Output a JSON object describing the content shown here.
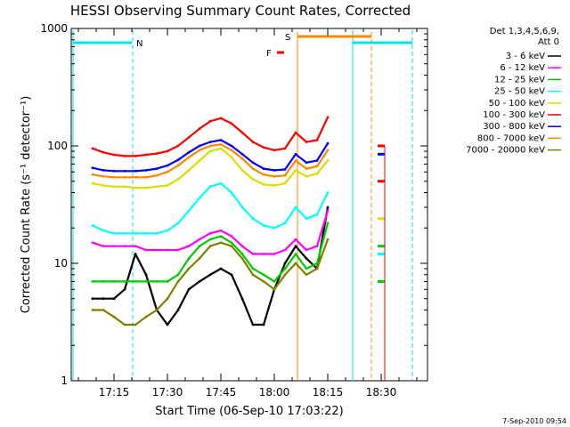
{
  "chart_data": {
    "type": "line",
    "title": "HESSI Observing Summary Count Rates, Corrected",
    "xlabel": "Start Time (06-Sep-10 17:03:22)",
    "ylabel": "Corrected Count Rate (s⁻¹ detector⁻¹)",
    "yscale": "log",
    "ylim": [
      1,
      1000
    ],
    "xlim": [
      "17:03",
      "18:43"
    ],
    "x_ticks": [
      "17:15",
      "17:30",
      "17:45",
      "18:00",
      "18:15",
      "18:30"
    ],
    "y_ticks": [
      "1",
      "10",
      "100",
      "1000"
    ],
    "timestamp": "7-Sep-2010 09:54",
    "legend_header": [
      "Det 1,3,4,5,6,9,",
      "Att 0"
    ],
    "flags": {
      "N": "N",
      "S": "S",
      "F": "F"
    },
    "series": [
      {
        "name": "3 - 6 keV",
        "color": "#000000",
        "points": [
          [
            "17:09",
            5
          ],
          [
            "17:12",
            5
          ],
          [
            "17:15",
            5
          ],
          [
            "17:18",
            6
          ],
          [
            "17:21",
            12
          ],
          [
            "17:24",
            8
          ],
          [
            "17:27",
            4
          ],
          [
            "17:30",
            3
          ],
          [
            "17:33",
            4
          ],
          [
            "17:36",
            6
          ],
          [
            "17:39",
            7
          ],
          [
            "17:42",
            8
          ],
          [
            "17:45",
            9
          ],
          [
            "17:48",
            8
          ],
          [
            "17:51",
            5
          ],
          [
            "17:54",
            3
          ],
          [
            "17:57",
            3
          ],
          [
            "18:00",
            6
          ],
          [
            "18:03",
            10
          ],
          [
            "18:06",
            14
          ],
          [
            "18:09",
            11
          ],
          [
            "18:12",
            9
          ],
          [
            "18:15",
            30
          ]
        ]
      },
      {
        "name": "6 - 12 keV",
        "color": "#ff00ff",
        "points": [
          [
            "17:09",
            15
          ],
          [
            "17:12",
            14
          ],
          [
            "17:15",
            14
          ],
          [
            "17:18",
            14
          ],
          [
            "17:21",
            14
          ],
          [
            "17:24",
            13
          ],
          [
            "17:27",
            13
          ],
          [
            "17:30",
            13
          ],
          [
            "17:33",
            13
          ],
          [
            "17:36",
            14
          ],
          [
            "17:39",
            16
          ],
          [
            "17:42",
            18
          ],
          [
            "17:45",
            19
          ],
          [
            "17:48",
            17
          ],
          [
            "17:51",
            14
          ],
          [
            "17:54",
            12
          ],
          [
            "17:57",
            12
          ],
          [
            "18:00",
            12
          ],
          [
            "18:03",
            13
          ],
          [
            "18:06",
            16
          ],
          [
            "18:09",
            13
          ],
          [
            "18:12",
            14
          ],
          [
            "18:15",
            28
          ]
        ]
      },
      {
        "name": "12 - 25 keV",
        "color": "#00cc00",
        "points": [
          [
            "17:09",
            7
          ],
          [
            "17:12",
            7
          ],
          [
            "17:15",
            7
          ],
          [
            "17:18",
            7
          ],
          [
            "17:21",
            7
          ],
          [
            "17:24",
            7
          ],
          [
            "17:27",
            7
          ],
          [
            "17:30",
            7
          ],
          [
            "17:33",
            8
          ],
          [
            "17:36",
            11
          ],
          [
            "17:39",
            14
          ],
          [
            "17:42",
            16
          ],
          [
            "17:45",
            17
          ],
          [
            "17:48",
            15
          ],
          [
            "17:51",
            12
          ],
          [
            "17:54",
            9
          ],
          [
            "17:57",
            8
          ],
          [
            "18:00",
            7
          ],
          [
            "18:03",
            9
          ],
          [
            "18:06",
            12
          ],
          [
            "18:09",
            9
          ],
          [
            "18:12",
            10
          ],
          [
            "18:15",
            22
          ]
        ]
      },
      {
        "name": "25 - 50 keV",
        "color": "#00ffff",
        "points": [
          [
            "17:09",
            21
          ],
          [
            "17:12",
            19
          ],
          [
            "17:15",
            18
          ],
          [
            "17:18",
            18
          ],
          [
            "17:21",
            18
          ],
          [
            "17:24",
            18
          ],
          [
            "17:27",
            18
          ],
          [
            "17:30",
            19
          ],
          [
            "17:33",
            22
          ],
          [
            "17:36",
            28
          ],
          [
            "17:39",
            36
          ],
          [
            "17:42",
            45
          ],
          [
            "17:45",
            48
          ],
          [
            "17:48",
            40
          ],
          [
            "17:51",
            30
          ],
          [
            "17:54",
            24
          ],
          [
            "17:57",
            21
          ],
          [
            "18:00",
            20
          ],
          [
            "18:03",
            22
          ],
          [
            "18:06",
            30
          ],
          [
            "18:09",
            24
          ],
          [
            "18:12",
            26
          ],
          [
            "18:15",
            40
          ]
        ]
      },
      {
        "name": "50 - 100 keV",
        "color": "#dddd00",
        "points": [
          [
            "17:09",
            48
          ],
          [
            "17:12",
            46
          ],
          [
            "17:15",
            45
          ],
          [
            "17:18",
            45
          ],
          [
            "17:21",
            44
          ],
          [
            "17:24",
            44
          ],
          [
            "17:27",
            45
          ],
          [
            "17:30",
            46
          ],
          [
            "17:33",
            52
          ],
          [
            "17:36",
            62
          ],
          [
            "17:39",
            75
          ],
          [
            "17:42",
            90
          ],
          [
            "17:45",
            95
          ],
          [
            "17:48",
            80
          ],
          [
            "17:51",
            62
          ],
          [
            "17:54",
            52
          ],
          [
            "17:57",
            47
          ],
          [
            "18:00",
            46
          ],
          [
            "18:03",
            48
          ],
          [
            "18:06",
            62
          ],
          [
            "18:09",
            55
          ],
          [
            "18:12",
            58
          ],
          [
            "18:15",
            75
          ]
        ]
      },
      {
        "name": "100 - 300 keV",
        "color": "#ff0000",
        "points": [
          [
            "17:09",
            95
          ],
          [
            "17:12",
            88
          ],
          [
            "17:15",
            84
          ],
          [
            "17:18",
            82
          ],
          [
            "17:21",
            82
          ],
          [
            "17:24",
            84
          ],
          [
            "17:27",
            86
          ],
          [
            "17:30",
            90
          ],
          [
            "17:33",
            100
          ],
          [
            "17:36",
            118
          ],
          [
            "17:39",
            140
          ],
          [
            "17:42",
            162
          ],
          [
            "17:45",
            172
          ],
          [
            "17:48",
            155
          ],
          [
            "17:51",
            130
          ],
          [
            "17:54",
            108
          ],
          [
            "17:57",
            97
          ],
          [
            "18:00",
            92
          ],
          [
            "18:03",
            95
          ],
          [
            "18:06",
            130
          ],
          [
            "18:09",
            108
          ],
          [
            "18:12",
            112
          ],
          [
            "18:15",
            175
          ]
        ]
      },
      {
        "name": "300 - 800 keV",
        "color": "#0000ff",
        "points": [
          [
            "17:09",
            65
          ],
          [
            "17:12",
            62
          ],
          [
            "17:15",
            61
          ],
          [
            "17:18",
            61
          ],
          [
            "17:21",
            61
          ],
          [
            "17:24",
            62
          ],
          [
            "17:27",
            64
          ],
          [
            "17:30",
            68
          ],
          [
            "17:33",
            76
          ],
          [
            "17:36",
            88
          ],
          [
            "17:39",
            100
          ],
          [
            "17:42",
            108
          ],
          [
            "17:45",
            112
          ],
          [
            "17:48",
            100
          ],
          [
            "17:51",
            85
          ],
          [
            "17:54",
            72
          ],
          [
            "17:57",
            64
          ],
          [
            "18:00",
            62
          ],
          [
            "18:03",
            63
          ],
          [
            "18:06",
            85
          ],
          [
            "18:09",
            72
          ],
          [
            "18:12",
            75
          ],
          [
            "18:15",
            105
          ]
        ]
      },
      {
        "name": "800 - 7000 keV",
        "color": "#ff8800",
        "points": [
          [
            "17:09",
            57
          ],
          [
            "17:12",
            55
          ],
          [
            "17:15",
            54
          ],
          [
            "17:18",
            54
          ],
          [
            "17:21",
            54
          ],
          [
            "17:24",
            54
          ],
          [
            "17:27",
            56
          ],
          [
            "17:30",
            60
          ],
          [
            "17:33",
            68
          ],
          [
            "17:36",
            80
          ],
          [
            "17:39",
            92
          ],
          [
            "17:42",
            100
          ],
          [
            "17:45",
            103
          ],
          [
            "17:48",
            92
          ],
          [
            "17:51",
            78
          ],
          [
            "17:54",
            64
          ],
          [
            "17:57",
            57
          ],
          [
            "18:00",
            55
          ],
          [
            "18:03",
            56
          ],
          [
            "18:06",
            75
          ],
          [
            "18:09",
            64
          ],
          [
            "18:12",
            67
          ],
          [
            "18:15",
            92
          ]
        ]
      },
      {
        "name": "7000 - 20000 keV",
        "color": "#808000",
        "points": [
          [
            "17:09",
            4
          ],
          [
            "17:12",
            4
          ],
          [
            "17:15",
            3.5
          ],
          [
            "17:18",
            3
          ],
          [
            "17:21",
            3
          ],
          [
            "17:24",
            3.5
          ],
          [
            "17:27",
            4
          ],
          [
            "17:30",
            5
          ],
          [
            "17:33",
            7
          ],
          [
            "17:36",
            9
          ],
          [
            "17:39",
            11
          ],
          [
            "17:42",
            14
          ],
          [
            "17:45",
            15
          ],
          [
            "17:48",
            14
          ],
          [
            "17:51",
            11
          ],
          [
            "17:54",
            8
          ],
          [
            "17:57",
            7
          ],
          [
            "18:00",
            6
          ],
          [
            "18:03",
            8
          ],
          [
            "18:06",
            10
          ],
          [
            "18:09",
            8
          ],
          [
            "18:12",
            9
          ],
          [
            "18:15",
            16
          ]
        ]
      }
    ],
    "late_segment": {
      "time_range": [
        "18:29",
        "18:31"
      ],
      "values": [
        100,
        85,
        50,
        24,
        14,
        12,
        7
      ]
    }
  }
}
